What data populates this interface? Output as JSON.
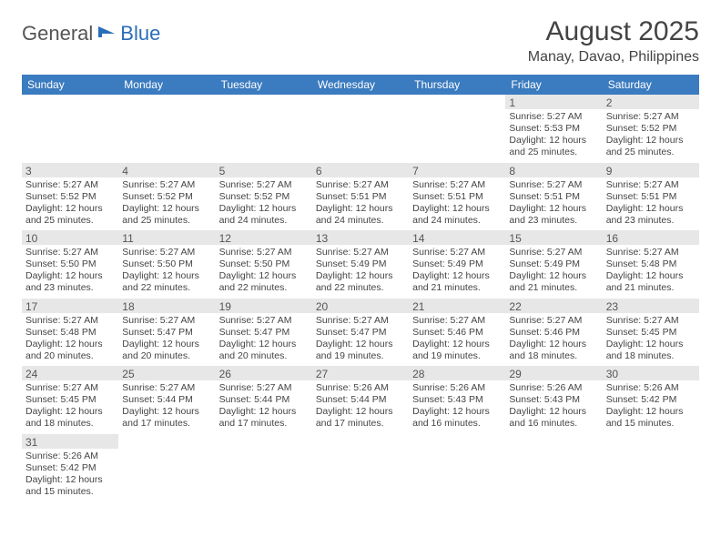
{
  "logo": {
    "part1": "General",
    "part2": "Blue"
  },
  "title": "August 2025",
  "location": "Manay, Davao, Philippines",
  "colors": {
    "header_bg": "#3b7bbf",
    "header_text": "#ffffff",
    "daynum_bg": "#e7e7e7",
    "row_border": "#3b7bbf",
    "text": "#444444"
  },
  "weekdays": [
    "Sunday",
    "Monday",
    "Tuesday",
    "Wednesday",
    "Thursday",
    "Friday",
    "Saturday"
  ],
  "weeks": [
    [
      {
        "n": "",
        "sr": "",
        "ss": "",
        "dl": ""
      },
      {
        "n": "",
        "sr": "",
        "ss": "",
        "dl": ""
      },
      {
        "n": "",
        "sr": "",
        "ss": "",
        "dl": ""
      },
      {
        "n": "",
        "sr": "",
        "ss": "",
        "dl": ""
      },
      {
        "n": "",
        "sr": "",
        "ss": "",
        "dl": ""
      },
      {
        "n": "1",
        "sr": "Sunrise: 5:27 AM",
        "ss": "Sunset: 5:53 PM",
        "dl": "Daylight: 12 hours and 25 minutes."
      },
      {
        "n": "2",
        "sr": "Sunrise: 5:27 AM",
        "ss": "Sunset: 5:52 PM",
        "dl": "Daylight: 12 hours and 25 minutes."
      }
    ],
    [
      {
        "n": "3",
        "sr": "Sunrise: 5:27 AM",
        "ss": "Sunset: 5:52 PM",
        "dl": "Daylight: 12 hours and 25 minutes."
      },
      {
        "n": "4",
        "sr": "Sunrise: 5:27 AM",
        "ss": "Sunset: 5:52 PM",
        "dl": "Daylight: 12 hours and 25 minutes."
      },
      {
        "n": "5",
        "sr": "Sunrise: 5:27 AM",
        "ss": "Sunset: 5:52 PM",
        "dl": "Daylight: 12 hours and 24 minutes."
      },
      {
        "n": "6",
        "sr": "Sunrise: 5:27 AM",
        "ss": "Sunset: 5:51 PM",
        "dl": "Daylight: 12 hours and 24 minutes."
      },
      {
        "n": "7",
        "sr": "Sunrise: 5:27 AM",
        "ss": "Sunset: 5:51 PM",
        "dl": "Daylight: 12 hours and 24 minutes."
      },
      {
        "n": "8",
        "sr": "Sunrise: 5:27 AM",
        "ss": "Sunset: 5:51 PM",
        "dl": "Daylight: 12 hours and 23 minutes."
      },
      {
        "n": "9",
        "sr": "Sunrise: 5:27 AM",
        "ss": "Sunset: 5:51 PM",
        "dl": "Daylight: 12 hours and 23 minutes."
      }
    ],
    [
      {
        "n": "10",
        "sr": "Sunrise: 5:27 AM",
        "ss": "Sunset: 5:50 PM",
        "dl": "Daylight: 12 hours and 23 minutes."
      },
      {
        "n": "11",
        "sr": "Sunrise: 5:27 AM",
        "ss": "Sunset: 5:50 PM",
        "dl": "Daylight: 12 hours and 22 minutes."
      },
      {
        "n": "12",
        "sr": "Sunrise: 5:27 AM",
        "ss": "Sunset: 5:50 PM",
        "dl": "Daylight: 12 hours and 22 minutes."
      },
      {
        "n": "13",
        "sr": "Sunrise: 5:27 AM",
        "ss": "Sunset: 5:49 PM",
        "dl": "Daylight: 12 hours and 22 minutes."
      },
      {
        "n": "14",
        "sr": "Sunrise: 5:27 AM",
        "ss": "Sunset: 5:49 PM",
        "dl": "Daylight: 12 hours and 21 minutes."
      },
      {
        "n": "15",
        "sr": "Sunrise: 5:27 AM",
        "ss": "Sunset: 5:49 PM",
        "dl": "Daylight: 12 hours and 21 minutes."
      },
      {
        "n": "16",
        "sr": "Sunrise: 5:27 AM",
        "ss": "Sunset: 5:48 PM",
        "dl": "Daylight: 12 hours and 21 minutes."
      }
    ],
    [
      {
        "n": "17",
        "sr": "Sunrise: 5:27 AM",
        "ss": "Sunset: 5:48 PM",
        "dl": "Daylight: 12 hours and 20 minutes."
      },
      {
        "n": "18",
        "sr": "Sunrise: 5:27 AM",
        "ss": "Sunset: 5:47 PM",
        "dl": "Daylight: 12 hours and 20 minutes."
      },
      {
        "n": "19",
        "sr": "Sunrise: 5:27 AM",
        "ss": "Sunset: 5:47 PM",
        "dl": "Daylight: 12 hours and 20 minutes."
      },
      {
        "n": "20",
        "sr": "Sunrise: 5:27 AM",
        "ss": "Sunset: 5:47 PM",
        "dl": "Daylight: 12 hours and 19 minutes."
      },
      {
        "n": "21",
        "sr": "Sunrise: 5:27 AM",
        "ss": "Sunset: 5:46 PM",
        "dl": "Daylight: 12 hours and 19 minutes."
      },
      {
        "n": "22",
        "sr": "Sunrise: 5:27 AM",
        "ss": "Sunset: 5:46 PM",
        "dl": "Daylight: 12 hours and 18 minutes."
      },
      {
        "n": "23",
        "sr": "Sunrise: 5:27 AM",
        "ss": "Sunset: 5:45 PM",
        "dl": "Daylight: 12 hours and 18 minutes."
      }
    ],
    [
      {
        "n": "24",
        "sr": "Sunrise: 5:27 AM",
        "ss": "Sunset: 5:45 PM",
        "dl": "Daylight: 12 hours and 18 minutes."
      },
      {
        "n": "25",
        "sr": "Sunrise: 5:27 AM",
        "ss": "Sunset: 5:44 PM",
        "dl": "Daylight: 12 hours and 17 minutes."
      },
      {
        "n": "26",
        "sr": "Sunrise: 5:27 AM",
        "ss": "Sunset: 5:44 PM",
        "dl": "Daylight: 12 hours and 17 minutes."
      },
      {
        "n": "27",
        "sr": "Sunrise: 5:26 AM",
        "ss": "Sunset: 5:44 PM",
        "dl": "Daylight: 12 hours and 17 minutes."
      },
      {
        "n": "28",
        "sr": "Sunrise: 5:26 AM",
        "ss": "Sunset: 5:43 PM",
        "dl": "Daylight: 12 hours and 16 minutes."
      },
      {
        "n": "29",
        "sr": "Sunrise: 5:26 AM",
        "ss": "Sunset: 5:43 PM",
        "dl": "Daylight: 12 hours and 16 minutes."
      },
      {
        "n": "30",
        "sr": "Sunrise: 5:26 AM",
        "ss": "Sunset: 5:42 PM",
        "dl": "Daylight: 12 hours and 15 minutes."
      }
    ],
    [
      {
        "n": "31",
        "sr": "Sunrise: 5:26 AM",
        "ss": "Sunset: 5:42 PM",
        "dl": "Daylight: 12 hours and 15 minutes."
      },
      {
        "n": "",
        "sr": "",
        "ss": "",
        "dl": ""
      },
      {
        "n": "",
        "sr": "",
        "ss": "",
        "dl": ""
      },
      {
        "n": "",
        "sr": "",
        "ss": "",
        "dl": ""
      },
      {
        "n": "",
        "sr": "",
        "ss": "",
        "dl": ""
      },
      {
        "n": "",
        "sr": "",
        "ss": "",
        "dl": ""
      },
      {
        "n": "",
        "sr": "",
        "ss": "",
        "dl": ""
      }
    ]
  ]
}
